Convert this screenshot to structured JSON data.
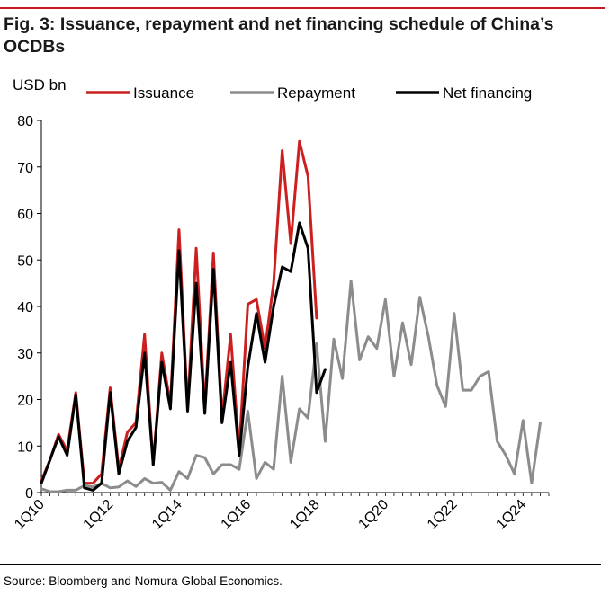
{
  "title": "Fig. 3: Issuance, repayment and net financing schedule of China’s OCDBs",
  "source": "Source: Bloomberg and Nomura Global Economics.",
  "chart_data": {
    "type": "line",
    "ylabel": "USD bn",
    "ylim": [
      0,
      80
    ],
    "yticks": [
      0,
      10,
      20,
      30,
      40,
      50,
      60,
      70,
      80
    ],
    "x_range": [
      "1Q10",
      "4Q24"
    ],
    "xtick_labels": [
      "1Q10",
      "1Q12",
      "1Q14",
      "1Q16",
      "1Q18",
      "1Q20",
      "1Q22",
      "1Q24"
    ],
    "xtick_every": 8,
    "legend_position": "top",
    "series": [
      {
        "name": "Issuance",
        "color": "#cc2020",
        "start": "1Q10",
        "values": [
          2.5,
          7,
          12.5,
          9,
          21.5,
          2,
          2,
          4,
          22.5,
          5,
          13,
          15,
          34,
          6,
          30,
          19,
          56.5,
          18,
          52.5,
          18,
          51.5,
          16,
          34,
          9,
          40.5,
          41.5,
          31,
          45,
          73.5,
          53.5,
          75.5,
          68,
          37.5
        ]
      },
      {
        "name": "Repayment",
        "color": "#8c8c8c",
        "start": "1Q10",
        "values": [
          0.8,
          0.2,
          0.2,
          0.5,
          0.5,
          1.5,
          1.2,
          2,
          1,
          1.2,
          2.5,
          1.3,
          3,
          2,
          2.2,
          0.5,
          4.5,
          3,
          8,
          7.5,
          4,
          6,
          6,
          5,
          17.5,
          3,
          6.5,
          5,
          25,
          6.5,
          18,
          16,
          32,
          11,
          33,
          24.5,
          45.5,
          28.5,
          33.5,
          31,
          41.5,
          25,
          36.5,
          27.5,
          42,
          33.5,
          23,
          18.5,
          38.5,
          22,
          22,
          25,
          26,
          11,
          8,
          4,
          15.5,
          2,
          15
        ]
      },
      {
        "name": "Net financing",
        "color": "#000000",
        "start": "1Q10",
        "values": [
          2,
          7,
          12,
          8,
          21,
          1,
          0.5,
          2,
          21.5,
          4,
          11,
          14,
          30,
          6,
          28,
          18,
          52,
          17.5,
          45,
          17,
          48,
          15,
          28,
          8,
          27,
          38.5,
          28,
          40,
          48.5,
          47.5,
          58,
          52.5,
          21.5,
          26.5
        ]
      }
    ]
  }
}
